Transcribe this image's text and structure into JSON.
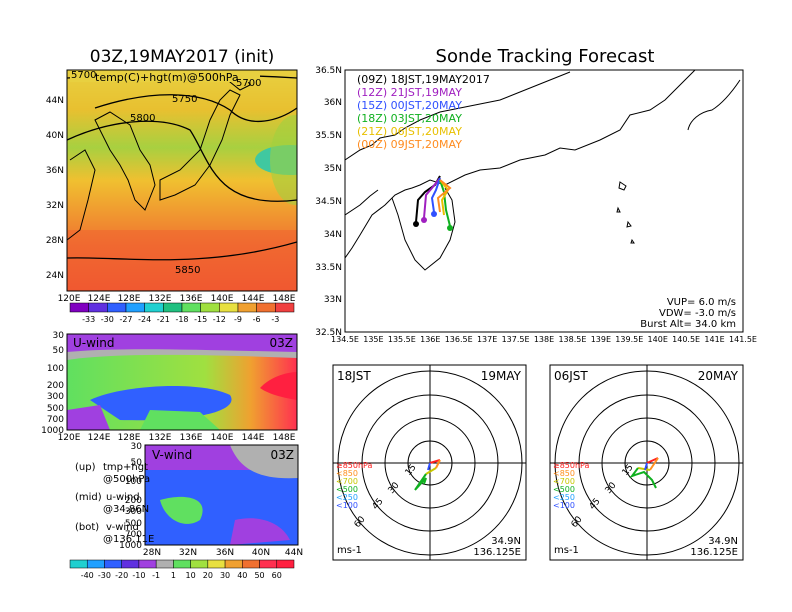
{
  "left": {
    "title": "03Z,19MAY2017 (init)",
    "map_label": "temp(C)+hgt(m)@500hPa",
    "contour_labels": [
      "5700",
      "5700",
      "5750",
      "5800",
      "5850"
    ],
    "x_ticks": [
      "120E",
      "124E",
      "128E",
      "132E",
      "136E",
      "140E",
      "144E",
      "148E"
    ],
    "y_ticks": [
      "44N",
      "40N",
      "36N",
      "32N",
      "28N",
      "24N"
    ],
    "temp_colorbar": [
      "-33",
      "-30",
      "-27",
      "-24",
      "-21",
      "-18",
      "-15",
      "-12",
      "-9",
      "-6",
      "-3"
    ],
    "uwind_label": "U-wind",
    "uwind_time": "03Z",
    "pressure_ticks": [
      "30",
      "50",
      "100",
      "200",
      "300",
      "500",
      "700",
      "1000"
    ],
    "vwind_label": "V-wind",
    "vwind_time": "03Z",
    "vwind_x_ticks": [
      "28N",
      "32N",
      "36N",
      "40N",
      "44N"
    ],
    "wind_colorbar": [
      "-40",
      "-30",
      "-20",
      "-10",
      "-1",
      "1",
      "10",
      "20",
      "30",
      "40",
      "50",
      "60"
    ],
    "notes": [
      {
        "k": "(up)",
        "v": "tmp+hgt"
      },
      {
        "k": "",
        "v": "@500hPa"
      },
      {
        "k": "(mid)",
        "v": "u-wind"
      },
      {
        "k": "",
        "v": "@34.86N"
      },
      {
        "k": "(bot)",
        "v": "v-wind"
      },
      {
        "k": "",
        "v": "@136.11E"
      }
    ]
  },
  "right": {
    "title": "Sonde Tracking Forecast",
    "legend": [
      {
        "label": "(09Z)  18JST,19MAY2017",
        "color": "#000000"
      },
      {
        "label": "(12Z)  21JST,19MAY",
        "color": "#a020c0"
      },
      {
        "label": "(15Z)  00JST,20MAY",
        "color": "#3050ff"
      },
      {
        "label": "(18Z)  03JST,20MAY",
        "color": "#10b020"
      },
      {
        "label": "(21Z)  06JST,20MAY",
        "color": "#e8c000"
      },
      {
        "label": "(00Z)  09JST,20MAY",
        "color": "#ff8c20"
      }
    ],
    "x_ticks": [
      "134.5E",
      "135E",
      "135.5E",
      "136E",
      "136.5E",
      "137E",
      "137.5E",
      "138E",
      "138.5E",
      "139E",
      "139.5E",
      "140E",
      "140.5E",
      "141E",
      "141.5E"
    ],
    "y_ticks": [
      "36.5N",
      "36N",
      "35.5N",
      "35N",
      "34.5N",
      "34N",
      "33.5N",
      "33N",
      "32.5N"
    ],
    "params": [
      "VUP=  6.0 m/s",
      "VDW= -3.0 m/s",
      "Burst Alt=  34.0 km"
    ]
  },
  "polar_left": {
    "time": "18JST",
    "date": "19MAY",
    "lat": "34.9N",
    "lon": "136.125E",
    "unit": "ms-1",
    "ring_labels": [
      "15",
      "30",
      "45",
      "60"
    ],
    "levels": [
      {
        "label": "≥850hPa",
        "color": "#ff2020"
      },
      {
        "label": "<850",
        "color": "#ff9020"
      },
      {
        "label": "<700",
        "color": "#c8c800"
      },
      {
        "label": "<500",
        "color": "#10b020"
      },
      {
        "label": "<250",
        "color": "#20a0ff"
      },
      {
        "label": "<100",
        "color": "#3050ff"
      }
    ]
  },
  "polar_right": {
    "time": "06JST",
    "date": "20MAY",
    "lat": "34.9N",
    "lon": "136.125E",
    "unit": "ms-1",
    "ring_labels": [
      "15",
      "30",
      "45",
      "60"
    ],
    "levels": [
      {
        "label": "≥850hPa",
        "color": "#ff2020"
      },
      {
        "label": "<850",
        "color": "#ff9020"
      },
      {
        "label": "<700",
        "color": "#c8c800"
      },
      {
        "label": "<500",
        "color": "#10b020"
      },
      {
        "label": "<250",
        "color": "#20a0ff"
      },
      {
        "label": "<100",
        "color": "#3050ff"
      }
    ]
  }
}
